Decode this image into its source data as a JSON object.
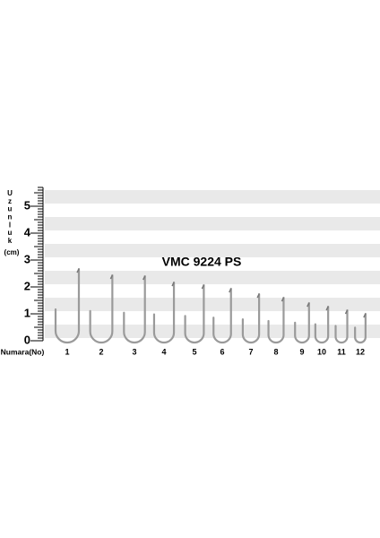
{
  "title": "VMC 9224 PS",
  "axis_label": {
    "letters": [
      "U",
      "z",
      "u",
      "n",
      "l",
      "u",
      "k"
    ],
    "unit": "(cm)"
  },
  "ruler": {
    "labels": [
      0,
      1,
      2,
      3,
      4,
      5
    ]
  },
  "hooks": {
    "label": "Numara(No)",
    "numbers": [
      "1",
      "2",
      "3",
      "4",
      "5",
      "6",
      "7",
      "8",
      "9",
      "10",
      "11",
      "12"
    ]
  }
}
